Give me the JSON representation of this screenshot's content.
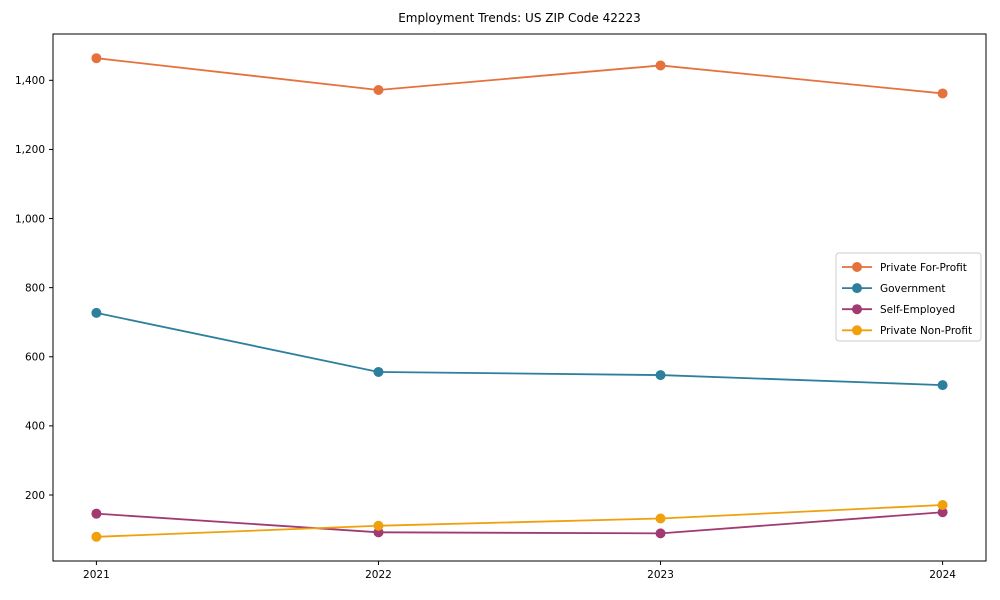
{
  "figure": {
    "background": "#ffffff",
    "axis_color": "#000000",
    "legend_border_color": "#cccccc"
  },
  "chart_data": {
    "type": "line",
    "title": "Employment Trends: US ZIP Code 42223",
    "xlabel": "",
    "ylabel": "",
    "x": [
      "2021",
      "2022",
      "2023",
      "2024"
    ],
    "series": [
      {
        "name": "Private For-Profit",
        "color": "#e5713d",
        "values": [
          1464,
          1372,
          1443,
          1362
        ]
      },
      {
        "name": "Government",
        "color": "#2d7f9d",
        "values": [
          727,
          556,
          547,
          518
        ]
      },
      {
        "name": "Self-Employed",
        "color": "#a23a72",
        "values": [
          146,
          92,
          89,
          150
        ]
      },
      {
        "name": "Private Non-Profit",
        "color": "#efa00b",
        "values": [
          79,
          111,
          132,
          171
        ]
      }
    ],
    "ylim": [
      9,
      1534
    ],
    "yticks": [
      200,
      400,
      600,
      800,
      1000,
      1200,
      1400
    ],
    "ytick_labels": [
      "200",
      "400",
      "600",
      "800",
      "1,000",
      "1,200",
      "1,400"
    ],
    "grid": false,
    "legend_position": "center right",
    "marker": "circle"
  }
}
